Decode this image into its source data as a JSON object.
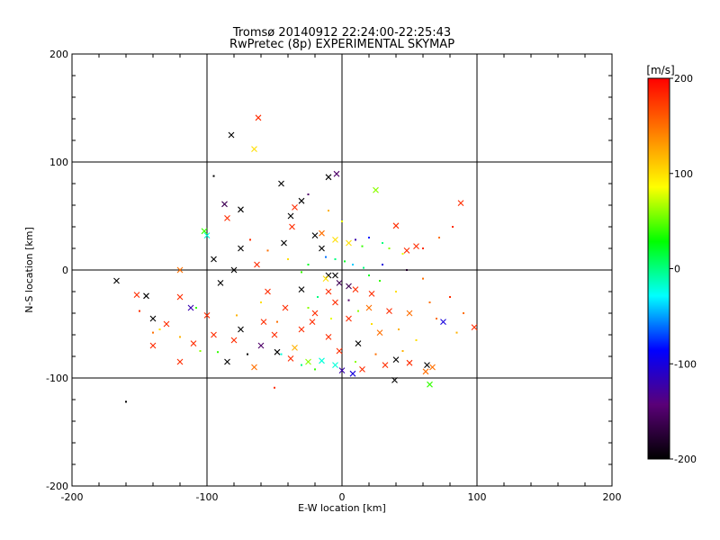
{
  "chart_data": {
    "type": "scatter",
    "title": "Tromsø 20140912 22:24:00-22:25:43",
    "subtitle": "RwPretec (8p) EXPERIMENTAL SKYMAP",
    "xlabel": "E-W location [km]",
    "ylabel": "N-S location [km]",
    "xlim": [
      -200,
      200
    ],
    "ylim": [
      -200,
      200
    ],
    "xticks": [
      "-200",
      "-100",
      "0",
      "100",
      "200"
    ],
    "yticks": [
      "-200",
      "-100",
      "0",
      "100",
      "200"
    ],
    "grid": true,
    "colorbar": {
      "label": "[m/s]",
      "range": [
        -200,
        200
      ],
      "ticks": [
        "200",
        "100",
        "0",
        "-100",
        "-200"
      ],
      "colormap": [
        "#000000",
        "#5a0078",
        "#0000ff",
        "#00ffff",
        "#00ff00",
        "#ffff00",
        "#ff7f00",
        "#ff0000"
      ]
    },
    "series": [
      {
        "marker": "x",
        "points": [
          [
            -62,
            141,
            180
          ],
          [
            -82,
            125,
            -200
          ],
          [
            -65,
            112,
            100
          ],
          [
            -45,
            80,
            -200
          ],
          [
            -10,
            86,
            -200
          ],
          [
            -4,
            89,
            -150
          ],
          [
            25,
            74,
            60
          ],
          [
            88,
            62,
            180
          ],
          [
            -87,
            61,
            -160
          ],
          [
            -30,
            64,
            -200
          ],
          [
            -35,
            58,
            180
          ],
          [
            -75,
            56,
            -200
          ],
          [
            -38,
            50,
            -200
          ],
          [
            -85,
            48,
            180
          ],
          [
            -102,
            36,
            40
          ],
          [
            -100,
            32,
            -20
          ],
          [
            -37,
            40,
            180
          ],
          [
            -20,
            32,
            -200
          ],
          [
            40,
            41,
            180
          ],
          [
            -15,
            34,
            150
          ],
          [
            -5,
            28,
            100
          ],
          [
            -43,
            25,
            -200
          ],
          [
            5,
            25,
            100
          ],
          [
            48,
            18,
            180
          ],
          [
            -15,
            20,
            -200
          ],
          [
            -75,
            20,
            -200
          ],
          [
            55,
            22,
            180
          ],
          [
            -95,
            10,
            -200
          ],
          [
            -80,
            0,
            -200
          ],
          [
            -63,
            5,
            180
          ],
          [
            -120,
            0,
            150
          ],
          [
            -167,
            -10,
            -200
          ],
          [
            -152,
            -23,
            180
          ],
          [
            -145,
            -24,
            -200
          ],
          [
            -120,
            -25,
            180
          ],
          [
            -90,
            -12,
            -200
          ],
          [
            -55,
            -20,
            180
          ],
          [
            -30,
            -18,
            -200
          ],
          [
            -10,
            -5,
            -200
          ],
          [
            -10,
            -20,
            180
          ],
          [
            5,
            -15,
            -160
          ],
          [
            10,
            -18,
            180
          ],
          [
            22,
            -22,
            180
          ],
          [
            -112,
            -35,
            -120
          ],
          [
            -100,
            -42,
            180
          ],
          [
            -140,
            -45,
            -200
          ],
          [
            -130,
            -50,
            180
          ],
          [
            -95,
            -60,
            180
          ],
          [
            -75,
            -55,
            -200
          ],
          [
            -60,
            -70,
            -150
          ],
          [
            -50,
            -60,
            180
          ],
          [
            -35,
            -72,
            120
          ],
          [
            -30,
            -55,
            180
          ],
          [
            -20,
            -40,
            180
          ],
          [
            -5,
            -30,
            180
          ],
          [
            5,
            -45,
            180
          ],
          [
            20,
            -35,
            150
          ],
          [
            35,
            -38,
            180
          ],
          [
            50,
            -40,
            150
          ],
          [
            75,
            -48,
            -100
          ],
          [
            98,
            -53,
            180
          ],
          [
            -140,
            -70,
            180
          ],
          [
            -110,
            -68,
            180
          ],
          [
            -80,
            -65,
            180
          ],
          [
            -48,
            -76,
            -200
          ],
          [
            -38,
            -82,
            180
          ],
          [
            -25,
            -85,
            60
          ],
          [
            -15,
            -84,
            -20
          ],
          [
            -5,
            -88,
            -20
          ],
          [
            0,
            -93,
            -120
          ],
          [
            8,
            -96,
            -100
          ],
          [
            15,
            -92,
            180
          ],
          [
            32,
            -88,
            180
          ],
          [
            40,
            -83,
            -200
          ],
          [
            50,
            -86,
            180
          ],
          [
            63,
            -88,
            -200
          ],
          [
            67,
            -90,
            150
          ],
          [
            62,
            -94,
            150
          ],
          [
            65,
            -106,
            40
          ],
          [
            -120,
            -85,
            180
          ],
          [
            -85,
            -85,
            -200
          ],
          [
            -65,
            -90,
            150
          ],
          [
            39,
            -102,
            -200
          ],
          [
            -58,
            -48,
            180
          ],
          [
            -22,
            -48,
            180
          ],
          [
            28,
            -58,
            150
          ],
          [
            -10,
            -62,
            180
          ],
          [
            -42,
            -35,
            180
          ],
          [
            12,
            -68,
            -200
          ],
          [
            -2,
            -75,
            180
          ],
          [
            -5,
            -5,
            -200
          ],
          [
            -2,
            -12,
            -160
          ],
          [
            -12,
            -8,
            100
          ]
        ]
      },
      {
        "marker": "dot",
        "points": [
          [
            -95,
            87,
            -200
          ],
          [
            -160,
            -122,
            -200
          ],
          [
            -50,
            -109,
            180
          ],
          [
            20,
            30,
            -80
          ],
          [
            10,
            28,
            -120
          ],
          [
            15,
            22,
            40
          ],
          [
            30,
            25,
            0
          ],
          [
            35,
            20,
            60
          ],
          [
            45,
            15,
            80
          ],
          [
            60,
            20,
            180
          ],
          [
            72,
            30,
            150
          ],
          [
            82,
            40,
            180
          ],
          [
            -108,
            -35,
            40
          ],
          [
            -60,
            -30,
            100
          ],
          [
            -25,
            -35,
            60
          ],
          [
            40,
            -20,
            100
          ],
          [
            65,
            -30,
            150
          ],
          [
            80,
            -25,
            180
          ],
          [
            90,
            -40,
            150
          ],
          [
            -135,
            -55,
            100
          ],
          [
            -120,
            -62,
            120
          ],
          [
            -105,
            -75,
            60
          ],
          [
            -92,
            -76,
            40
          ],
          [
            -70,
            -78,
            -200
          ],
          [
            -45,
            -78,
            -20
          ],
          [
            -30,
            -88,
            0
          ],
          [
            -20,
            -92,
            40
          ],
          [
            10,
            -85,
            60
          ],
          [
            25,
            -78,
            150
          ],
          [
            45,
            -75,
            120
          ],
          [
            55,
            -65,
            100
          ],
          [
            -12,
            12,
            -60
          ],
          [
            -5,
            10,
            0
          ],
          [
            2,
            8,
            20
          ],
          [
            8,
            5,
            -40
          ],
          [
            16,
            2,
            0
          ],
          [
            20,
            -5,
            20
          ],
          [
            28,
            -10,
            40
          ],
          [
            -25,
            5,
            20
          ],
          [
            -30,
            -2,
            40
          ],
          [
            12,
            -38,
            60
          ],
          [
            -8,
            -45,
            80
          ],
          [
            22,
            -50,
            100
          ],
          [
            42,
            -55,
            120
          ],
          [
            60,
            -8,
            150
          ],
          [
            -40,
            10,
            100
          ],
          [
            -55,
            18,
            150
          ],
          [
            -68,
            28,
            180
          ],
          [
            5,
            -28,
            -150
          ],
          [
            -18,
            -25,
            0
          ],
          [
            30,
            5,
            -100
          ],
          [
            48,
            0,
            -180
          ],
          [
            -78,
            -42,
            120
          ],
          [
            -48,
            -48,
            150
          ],
          [
            70,
            -45,
            150
          ],
          [
            85,
            -58,
            120
          ],
          [
            -140,
            -58,
            150
          ],
          [
            -150,
            -38,
            180
          ],
          [
            0,
            45,
            80
          ],
          [
            -10,
            55,
            120
          ],
          [
            -25,
            70,
            -150
          ]
        ]
      }
    ]
  }
}
